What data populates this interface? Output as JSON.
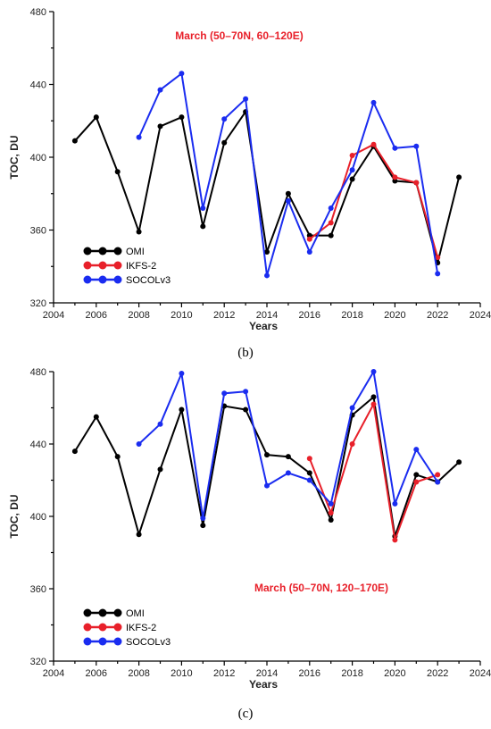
{
  "chart_data": [
    {
      "type": "line",
      "panel_label": "(b)",
      "title": "March (50–70N, 60–120E)",
      "title_color": "#e8202a",
      "xlabel": "Years",
      "ylabel": "TOC, DU",
      "xlim": [
        2004,
        2024
      ],
      "ylim": [
        320,
        480
      ],
      "xticks": [
        2004,
        2006,
        2008,
        2010,
        2012,
        2014,
        2016,
        2018,
        2020,
        2022,
        2024
      ],
      "yticks": [
        320,
        360,
        400,
        440,
        480
      ],
      "legend_position": "bottom-left",
      "series": [
        {
          "name": "OMI",
          "color": "#000000",
          "x": [
            2005,
            2006,
            2007,
            2008,
            2009,
            2010,
            2011,
            2012,
            2013,
            2014,
            2015,
            2016,
            2017,
            2018,
            2019,
            2020,
            2021,
            2022,
            2023
          ],
          "y": [
            409,
            422,
            392,
            359,
            417,
            422,
            362,
            408,
            425,
            348,
            380,
            357,
            357,
            388,
            406,
            387,
            386,
            342,
            389
          ]
        },
        {
          "name": "IKFS-2",
          "color": "#e8202a",
          "x": [
            2016,
            2017,
            2018,
            2019,
            2020,
            2021,
            2022
          ],
          "y": [
            355,
            364,
            401,
            407,
            389,
            386,
            345
          ]
        },
        {
          "name": "SOCOLv3",
          "color": "#1a2cf0",
          "x": [
            2008,
            2009,
            2010,
            2011,
            2012,
            2013,
            2014,
            2015,
            2016,
            2017,
            2018,
            2019,
            2020,
            2021,
            2022
          ],
          "y": [
            411,
            437,
            446,
            372,
            421,
            432,
            335,
            376,
            348,
            372,
            393,
            430,
            405,
            406,
            336
          ]
        }
      ]
    },
    {
      "type": "line",
      "panel_label": "(c)",
      "title": "March (50–70N, 120–170E)",
      "title_color": "#e8202a",
      "xlabel": "Years",
      "ylabel": "TOC, DU",
      "xlim": [
        2004,
        2024
      ],
      "ylim": [
        320,
        480
      ],
      "xticks": [
        2004,
        2006,
        2008,
        2010,
        2012,
        2014,
        2016,
        2018,
        2020,
        2022,
        2024
      ],
      "yticks": [
        320,
        360,
        400,
        440,
        480
      ],
      "legend_position": "bottom-left",
      "series": [
        {
          "name": "OMI",
          "color": "#000000",
          "x": [
            2005,
            2006,
            2007,
            2008,
            2009,
            2010,
            2011,
            2012,
            2013,
            2014,
            2015,
            2016,
            2017,
            2018,
            2019,
            2020,
            2021,
            2022,
            2023
          ],
          "y": [
            436,
            455,
            433,
            390,
            426,
            459,
            395,
            461,
            459,
            434,
            433,
            424,
            398,
            456,
            466,
            389,
            423,
            419,
            430
          ]
        },
        {
          "name": "IKFS-2",
          "color": "#e8202a",
          "x": [
            2016,
            2017,
            2018,
            2019,
            2020,
            2021,
            2022
          ],
          "y": [
            432,
            402,
            440,
            462,
            387,
            419,
            423
          ]
        },
        {
          "name": "SOCOLv3",
          "color": "#1a2cf0",
          "x": [
            2008,
            2009,
            2010,
            2011,
            2012,
            2013,
            2014,
            2015,
            2016,
            2017,
            2018,
            2019,
            2020,
            2021,
            2022
          ],
          "y": [
            440,
            451,
            479,
            399,
            468,
            469,
            417,
            424,
            420,
            407,
            460,
            480,
            407,
            437,
            419
          ]
        }
      ]
    }
  ]
}
